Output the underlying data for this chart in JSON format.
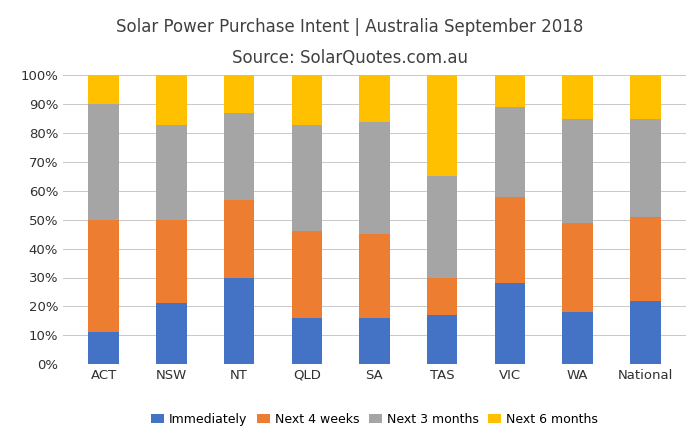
{
  "categories": [
    "ACT",
    "NSW",
    "NT",
    "QLD",
    "SA",
    "TAS",
    "VIC",
    "WA",
    "National"
  ],
  "immediately": [
    11,
    21,
    30,
    16,
    16,
    17,
    28,
    18,
    22
  ],
  "next_4_weeks": [
    39,
    29,
    27,
    30,
    29,
    13,
    30,
    31,
    29
  ],
  "next_3_months": [
    40,
    33,
    30,
    37,
    39,
    35,
    31,
    36,
    34
  ],
  "next_6_months": [
    10,
    17,
    13,
    17,
    16,
    35,
    11,
    15,
    15
  ],
  "colors": {
    "immediately": "#4472C4",
    "next_4_weeks": "#ED7D31",
    "next_3_months": "#A5A5A5",
    "next_6_months": "#FFC000"
  },
  "title_line1": "Solar Power Purchase Intent | Australia September 2018",
  "title_line2": "Source: SolarQuotes.com.au",
  "legend_labels": [
    "Immediately",
    "Next 4 weeks",
    "Next 3 months",
    "Next 6 months"
  ],
  "ylabel_ticks": [
    "0%",
    "10%",
    "20%",
    "30%",
    "40%",
    "50%",
    "60%",
    "70%",
    "80%",
    "90%",
    "100%"
  ],
  "background_color": "#FFFFFF",
  "grid_color": "#C8C8C8",
  "title_color": "#404040",
  "title_fontsize": 12,
  "bar_width": 0.45
}
